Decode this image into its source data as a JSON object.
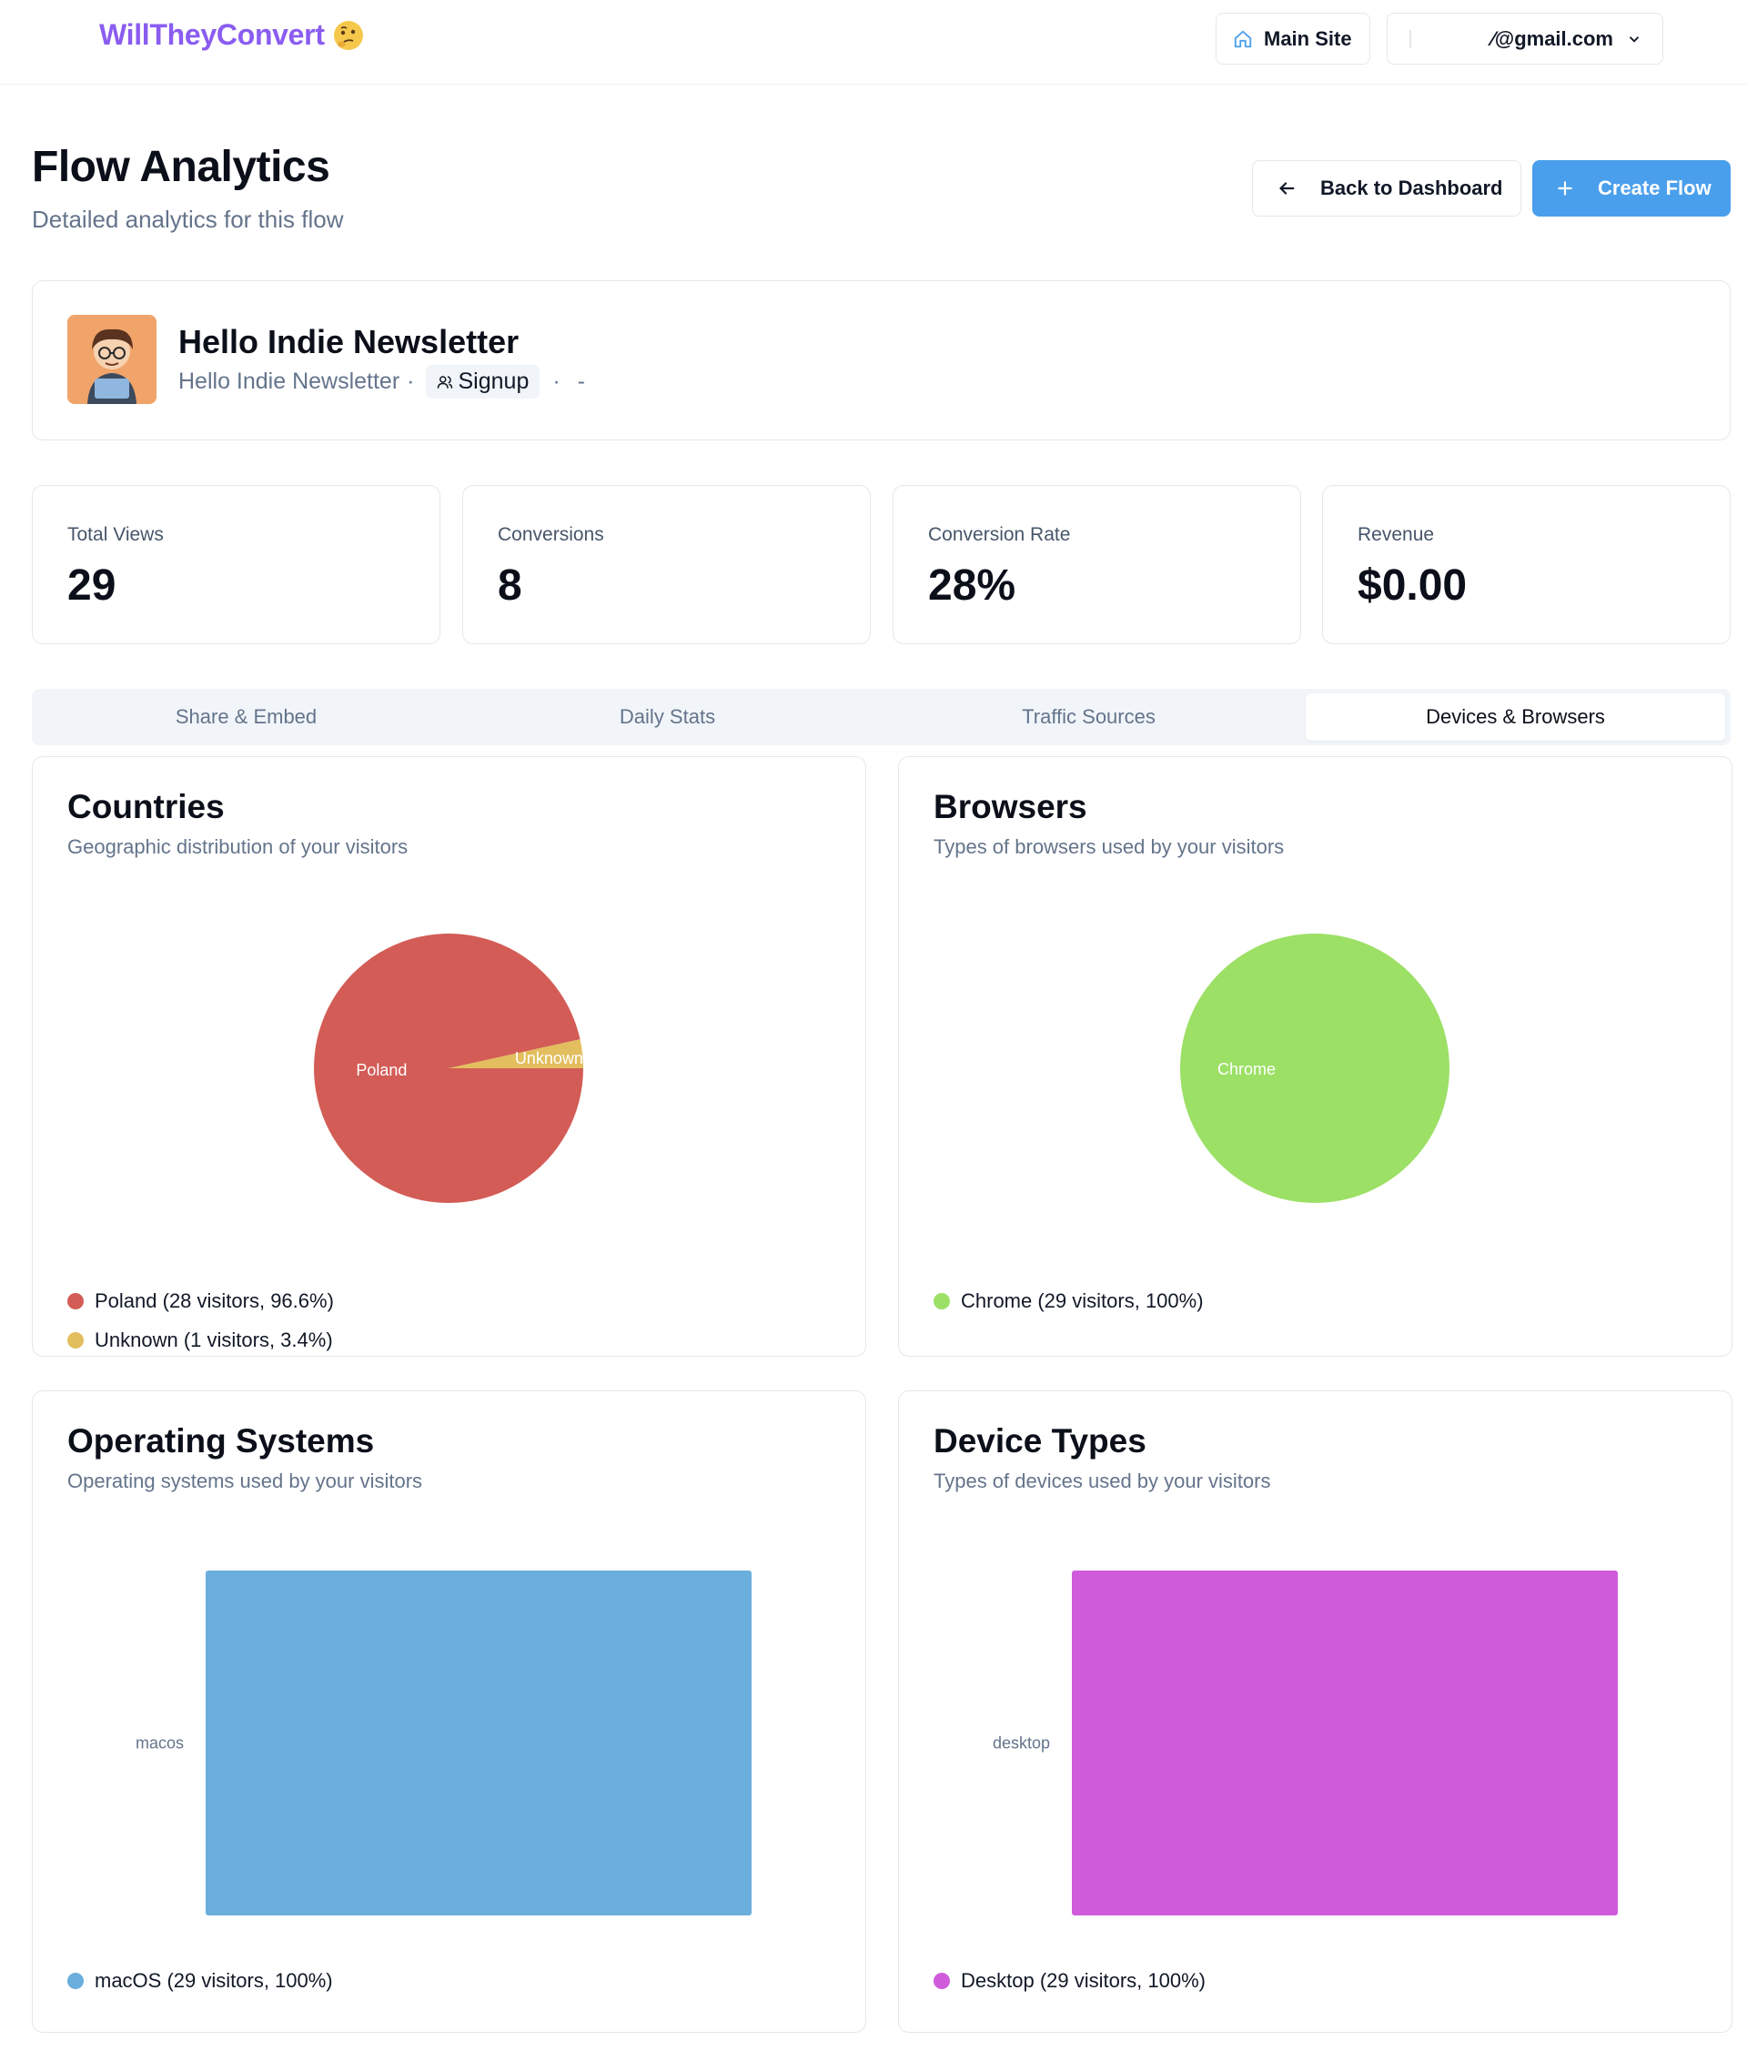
{
  "nav": {
    "brand": "WillTheyConvert",
    "main_site_label": "Main Site",
    "account_email": "⁄@gmail.com"
  },
  "header": {
    "title": "Flow Analytics",
    "subtitle": "Detailed analytics for this flow",
    "back_label": "Back to Dashboard",
    "create_label": "Create Flow"
  },
  "flow": {
    "name": "Hello Indie Newsletter",
    "owner": "Hello Indie Newsletter",
    "type": "Signup",
    "tail": "· -"
  },
  "stats": [
    {
      "label": "Total Views",
      "value": "29"
    },
    {
      "label": "Conversions",
      "value": "8"
    },
    {
      "label": "Conversion Rate",
      "value": "28%"
    },
    {
      "label": "Revenue",
      "value": "$0.00"
    }
  ],
  "tabs": [
    {
      "label": "Share & Embed",
      "active": false
    },
    {
      "label": "Daily Stats",
      "active": false
    },
    {
      "label": "Traffic Sources",
      "active": false
    },
    {
      "label": "Devices & Browsers",
      "active": true
    }
  ],
  "cards": {
    "countries": {
      "title": "Countries",
      "subtitle": "Geographic distribution of your visitors"
    },
    "browsers": {
      "title": "Browsers",
      "subtitle": "Types of browsers used by your visitors"
    },
    "os": {
      "title": "Operating Systems",
      "subtitle": "Operating systems used by your visitors"
    },
    "devices": {
      "title": "Device Types",
      "subtitle": "Types of devices used by your visitors"
    }
  },
  "chart_data": [
    {
      "id": "countries",
      "type": "pie",
      "slices": [
        {
          "label": "Poland",
          "value": 28,
          "color": "#d35c56",
          "legend": "Poland (28 visitors, 96.6%)"
        },
        {
          "label": "Unknown",
          "value": 1,
          "color": "#e3be5e",
          "legend": "Unknown (1 visitors, 3.4%)"
        }
      ]
    },
    {
      "id": "browsers",
      "type": "pie",
      "slices": [
        {
          "label": "Chrome",
          "value": 29,
          "color": "#9ce066",
          "legend": "Chrome (29 visitors, 100%)"
        }
      ]
    },
    {
      "id": "os",
      "type": "bar",
      "categories": [
        "macos"
      ],
      "values": [
        29
      ],
      "color": "#6aaedb",
      "legend": [
        "macOS (29 visitors, 100%)"
      ]
    },
    {
      "id": "devices",
      "type": "bar",
      "categories": [
        "desktop"
      ],
      "values": [
        29
      ],
      "color": "#d05bdb",
      "legend": [
        "Desktop (29 visitors, 100%)"
      ]
    }
  ]
}
